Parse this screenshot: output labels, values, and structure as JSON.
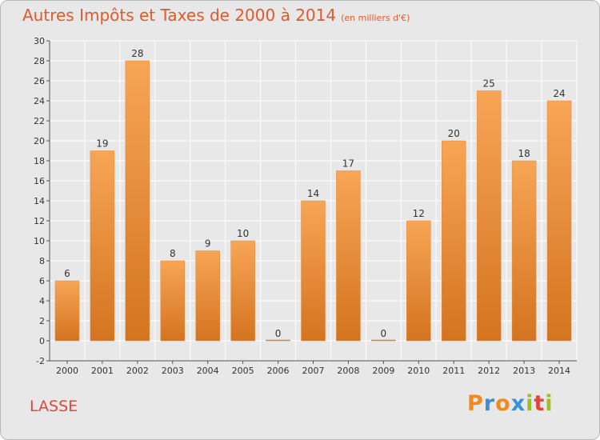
{
  "chart_data": {
    "type": "bar",
    "title": "Autres Impôts et Taxes de 2000 à 2014",
    "subtitle": "(en milliers d'€)",
    "categories": [
      "2000",
      "2001",
      "2002",
      "2003",
      "2004",
      "2005",
      "2006",
      "2007",
      "2008",
      "2009",
      "2010",
      "2011",
      "2012",
      "2013",
      "2014"
    ],
    "values": [
      6,
      19,
      28,
      8,
      9,
      10,
      0,
      14,
      17,
      0,
      12,
      20,
      25,
      18,
      24
    ],
    "ylim": [
      -2,
      30
    ],
    "yticks": [
      -2,
      0,
      2,
      4,
      6,
      8,
      10,
      12,
      14,
      16,
      18,
      20,
      22,
      24,
      26,
      28,
      30
    ],
    "xlabel": "",
    "ylabel": "",
    "grid": true,
    "bar_color_light": "#f7a556",
    "bar_color_dark": "#d4741f"
  },
  "place": "LASSE",
  "logo": {
    "letters": [
      "P",
      "r",
      "o",
      "x",
      "i",
      "t",
      "i"
    ],
    "colors": [
      "#f08a1c",
      "#3a8fd8",
      "#f08a1c",
      "#3a8fd8",
      "#9bc11e",
      "#e0463a",
      "#9bc11e"
    ]
  }
}
